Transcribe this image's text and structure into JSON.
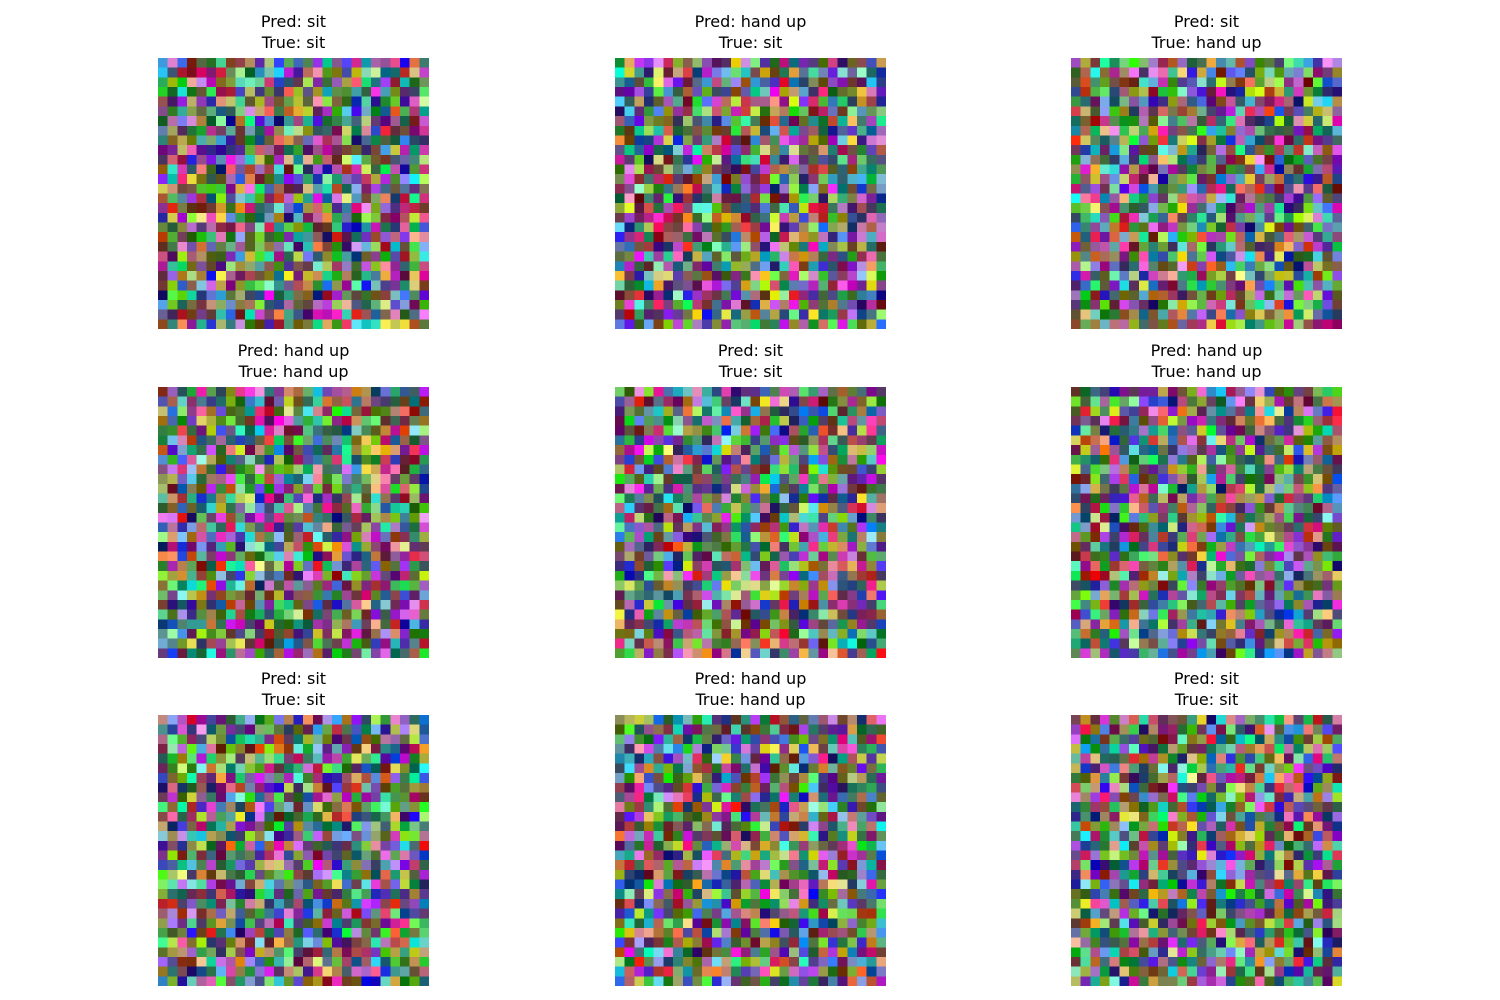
{
  "prefix": {
    "pred": "Pred: ",
    "true": "True: "
  },
  "samples": [
    {
      "pred": "sit",
      "true": "sit"
    },
    {
      "pred": "hand up",
      "true": "sit"
    },
    {
      "pred": "sit",
      "true": "hand up"
    },
    {
      "pred": "hand up",
      "true": "hand up"
    },
    {
      "pred": "sit",
      "true": "sit"
    },
    {
      "pred": "hand up",
      "true": "hand up"
    },
    {
      "pred": "sit",
      "true": "sit"
    },
    {
      "pred": "hand up",
      "true": "hand up"
    },
    {
      "pred": "sit",
      "true": "sit"
    }
  ],
  "image_grid": {
    "cells_per_side": 28,
    "content": "random-rgb-noise"
  }
}
